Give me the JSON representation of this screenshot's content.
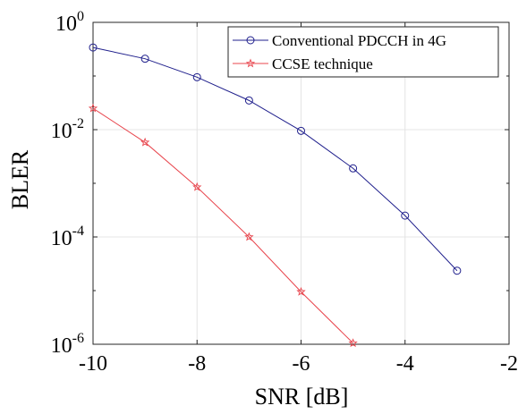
{
  "chart_data": {
    "type": "line",
    "title": "",
    "xlabel": "SNR [dB]",
    "ylabel": "BLER",
    "xlim": [
      -10,
      -2
    ],
    "ylim_log10": [
      -6,
      0
    ],
    "yscale": "log",
    "grid": true,
    "legend_position": "top-right",
    "x_ticks": [
      -10,
      -8,
      -6,
      -4,
      -2
    ],
    "x_tick_labels": [
      "-10",
      "-8",
      "-6",
      "-4",
      "-2"
    ],
    "y_tick_labels": [
      {
        "base": "10",
        "exp": "-6"
      },
      {
        "base": "10",
        "exp": "-4"
      },
      {
        "base": "10",
        "exp": "-2"
      },
      {
        "base": "10",
        "exp": "0"
      }
    ],
    "series": [
      {
        "name": "Conventional PDCCH in 4G",
        "color": "#1f1f8c",
        "marker": "circle",
        "x": [
          -10,
          -9,
          -8,
          -7,
          -6,
          -5,
          -4,
          -3
        ],
        "y": [
          0.34,
          0.21,
          0.095,
          0.035,
          0.0095,
          0.0019,
          0.00025,
          2.35e-05
        ]
      },
      {
        "name": "CCSE technique",
        "color": "#e8444c",
        "marker": "star",
        "x": [
          -10,
          -9,
          -8,
          -7,
          -6,
          -5
        ],
        "y": [
          0.025,
          0.0058,
          0.00085,
          0.0001,
          9.5e-06,
          1.05e-06
        ]
      }
    ]
  }
}
